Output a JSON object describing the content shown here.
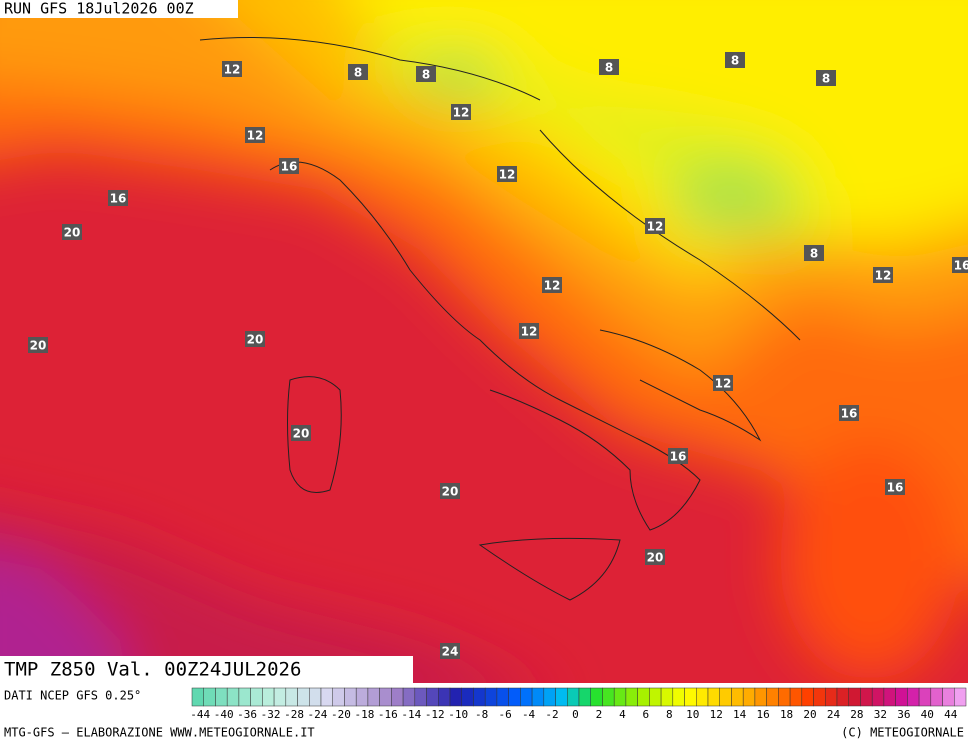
{
  "header": {
    "run": "RUN GFS 18Jul2026 00Z"
  },
  "map": {
    "contour_labels": [
      12,
      8,
      8,
      8,
      8,
      8,
      12,
      12,
      16,
      12,
      16,
      20,
      12,
      8,
      12,
      16,
      12,
      20,
      20,
      12,
      12,
      16,
      20,
      16,
      20,
      16,
      20,
      24
    ]
  },
  "footer": {
    "field": "TMP Z850 Val. 00Z24JUL2026",
    "source": "DATI NCEP GFS 0.25°",
    "credit": "MTG-GFS — ELABORAZIONE WWW.METEOGIORNALE.IT",
    "copyright": "(C) METEOGIORNALE"
  },
  "legend": {
    "labels": [
      -44,
      -40,
      -36,
      -32,
      -28,
      -24,
      -20,
      -18,
      -16,
      -14,
      -12,
      -10,
      -8,
      -6,
      -4,
      -2,
      0,
      2,
      4,
      6,
      8,
      10,
      12,
      14,
      16,
      18,
      20,
      24,
      28,
      32,
      36,
      40,
      44
    ]
  }
}
